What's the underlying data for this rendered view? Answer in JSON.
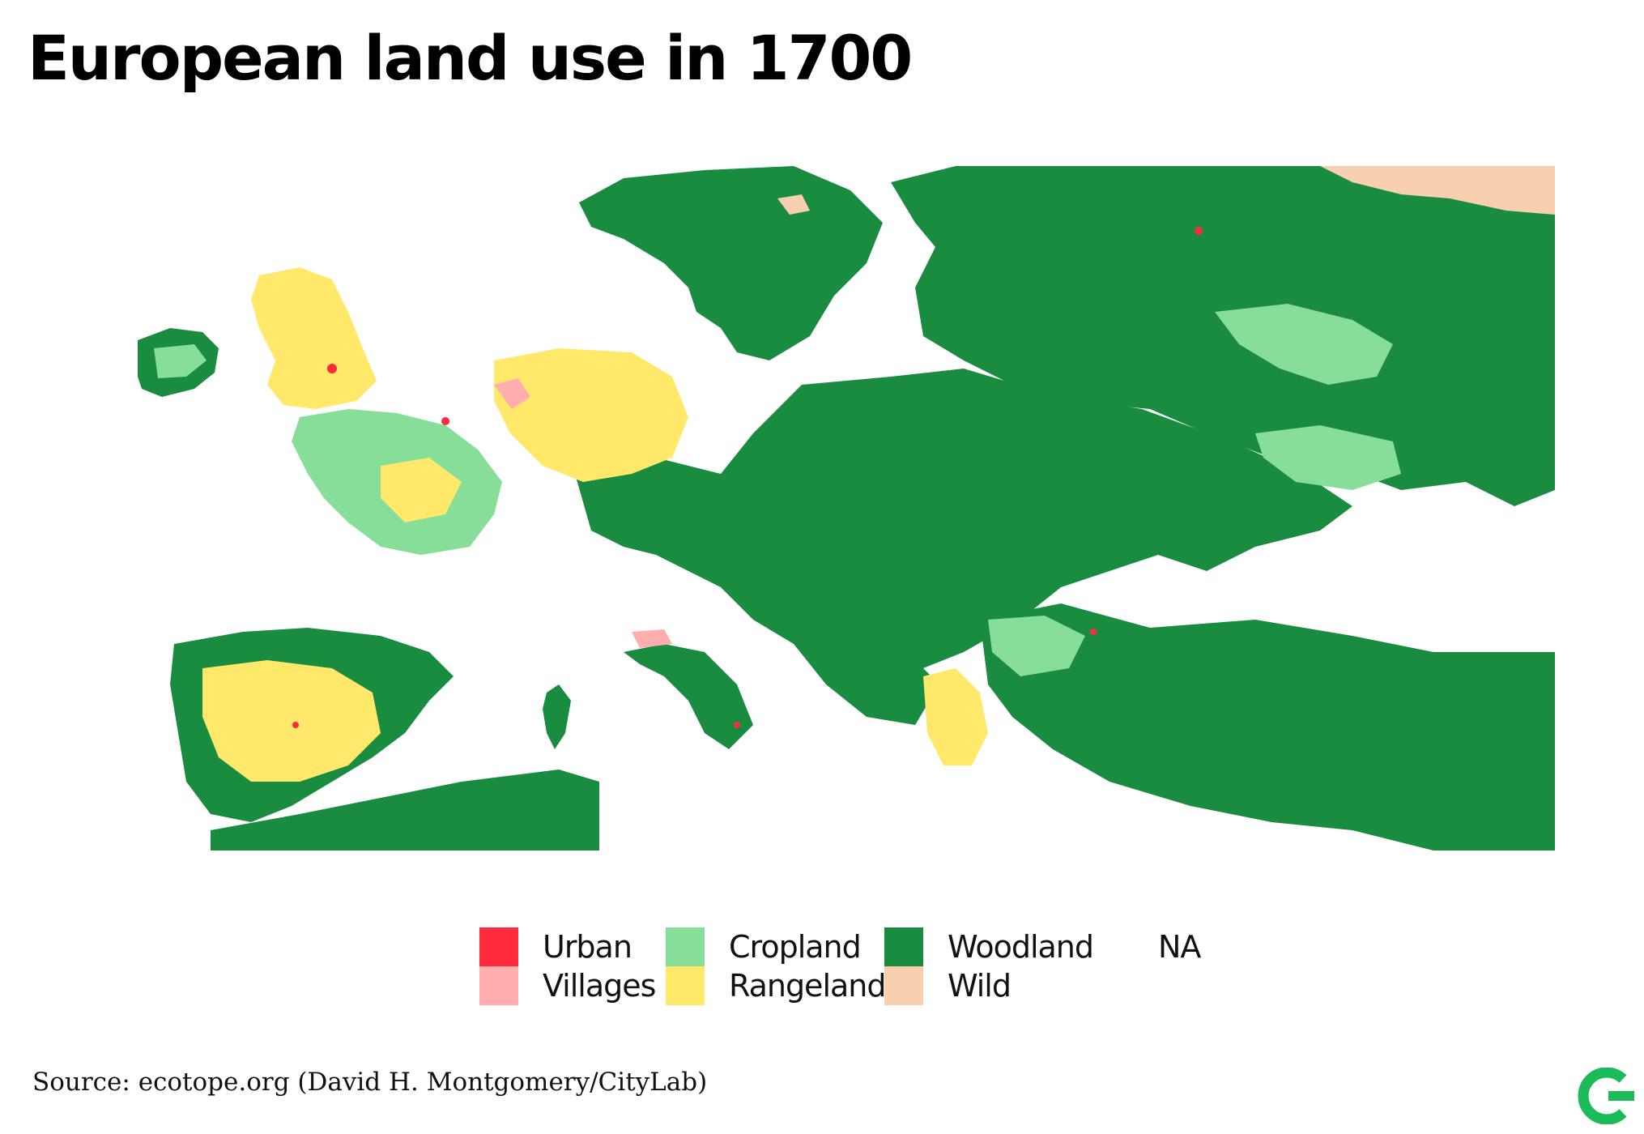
{
  "title": "European land use in 1700",
  "legend": [
    {
      "label": "Urban",
      "color": "#ff2a3c"
    },
    {
      "label": "Villages",
      "color": "#ffadae"
    },
    {
      "label": "Cropland",
      "color": "#86de98"
    },
    {
      "label": "Rangeland",
      "color": "#ffe86a"
    },
    {
      "label": "Woodland",
      "color": "#1a8c40"
    },
    {
      "label": "Wild",
      "color": "#f8d0b0"
    },
    {
      "label": "NA",
      "color": ""
    }
  ],
  "source": "Source: ecotope.org (David H. Montgomery/CityLab)",
  "logo": {
    "icon": "citylab-logo-icon",
    "color": "#1cbb5a"
  }
}
